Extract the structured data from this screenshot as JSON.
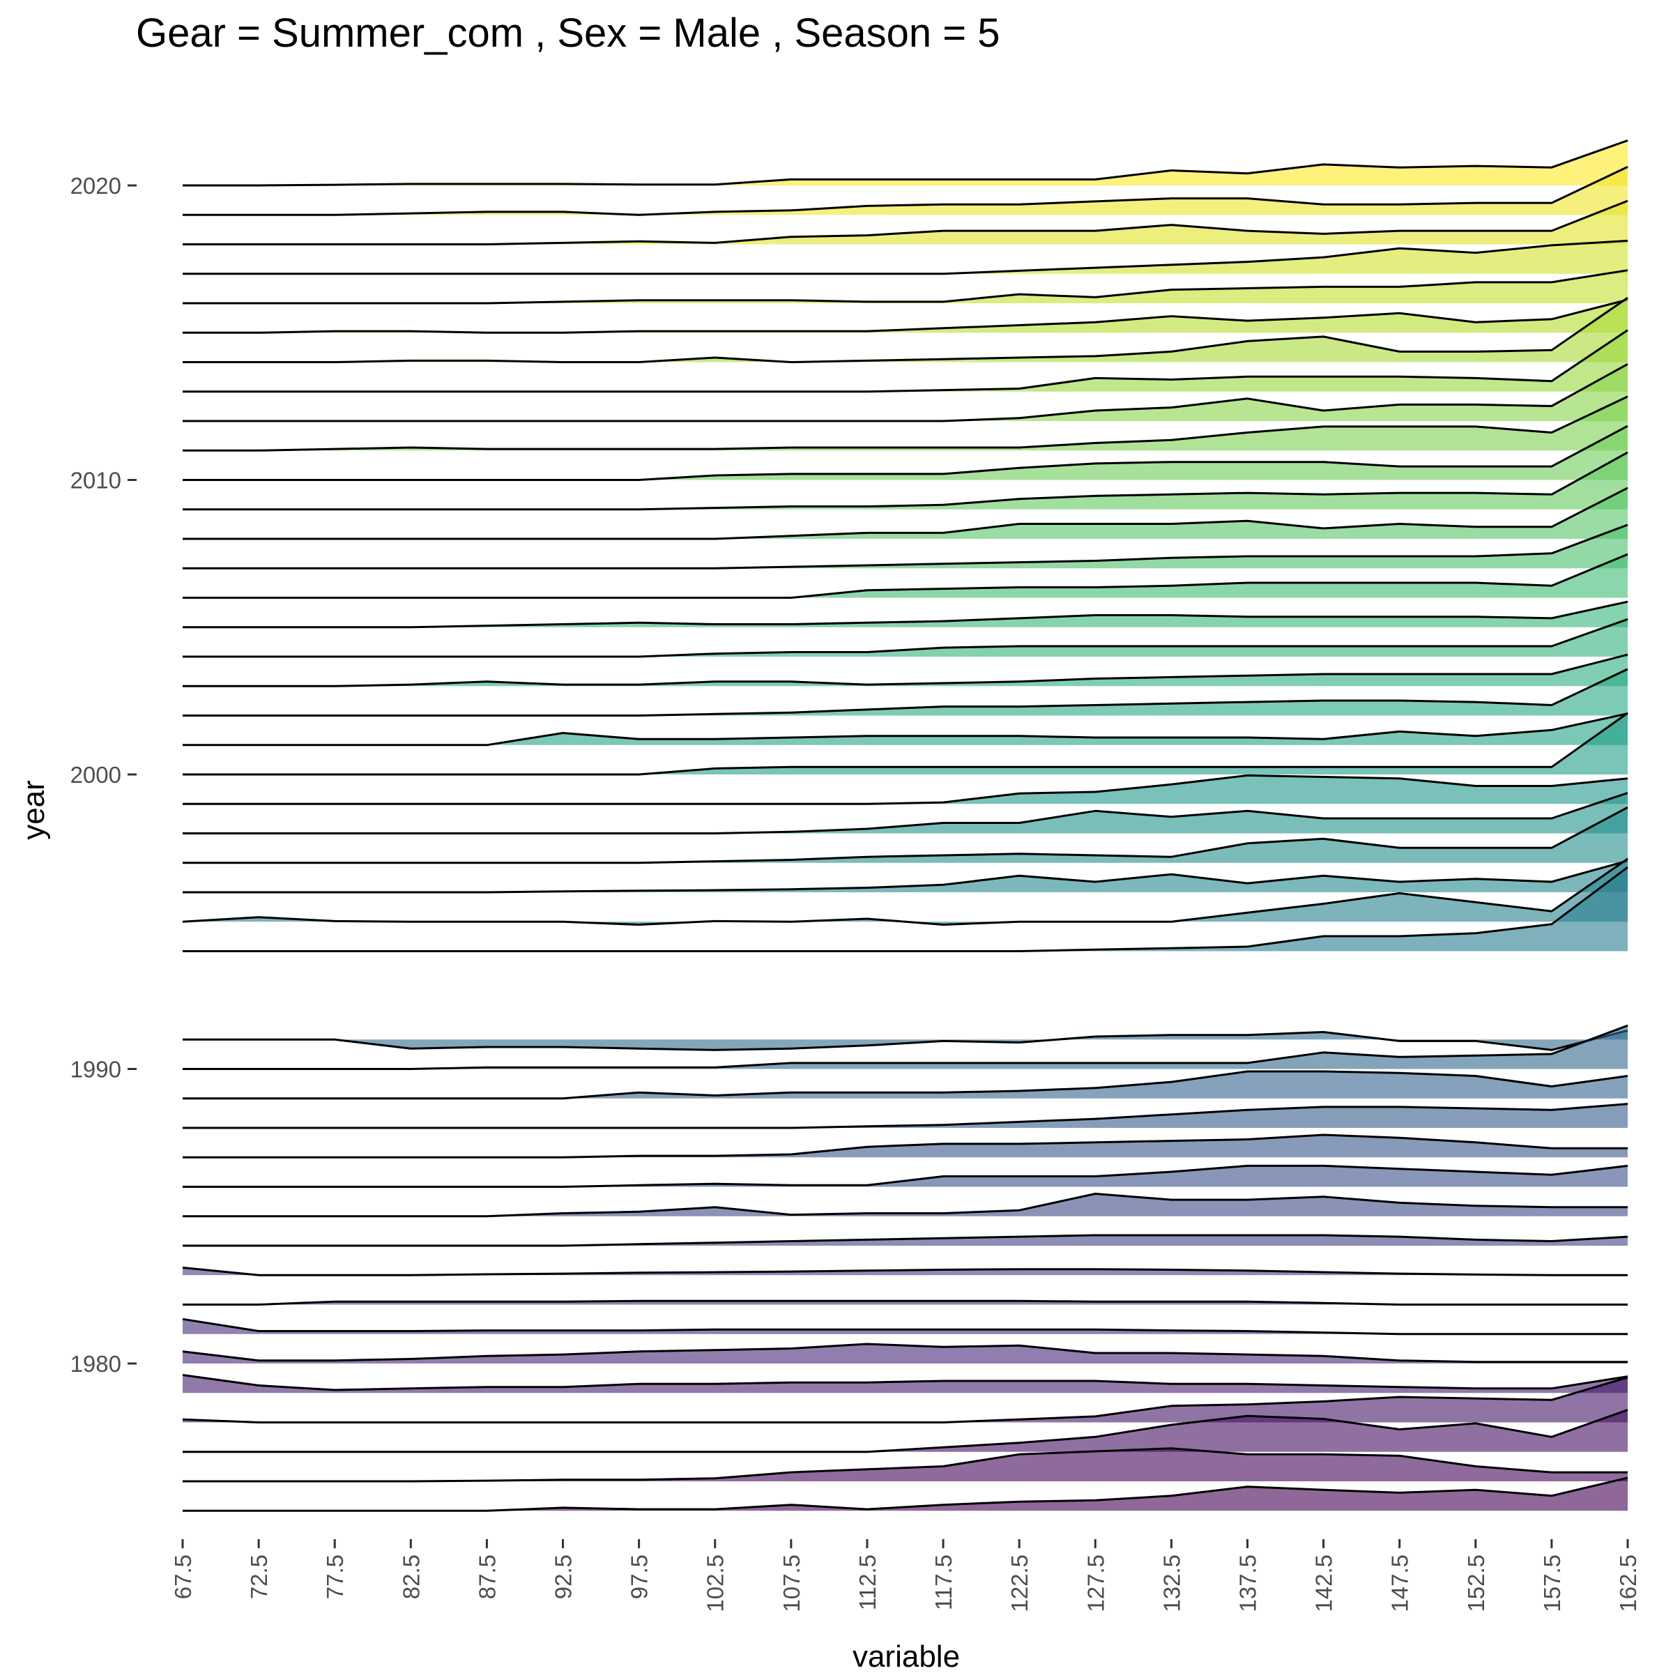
{
  "chart_data": {
    "type": "area",
    "subtype": "ridgeline",
    "title": "Gear = Summer_com , Sex = Male , Season = 5",
    "xlabel": "variable",
    "ylabel": "year",
    "x_ticks": [
      "67.5",
      "72.5",
      "77.5",
      "82.5",
      "87.5",
      "92.5",
      "97.5",
      "102.5",
      "107.5",
      "112.5",
      "117.5",
      "122.5",
      "127.5",
      "132.5",
      "137.5",
      "142.5",
      "147.5",
      "152.5",
      "157.5",
      "162.5"
    ],
    "y_ticks": [
      1980,
      1990,
      2000,
      2010,
      2020
    ],
    "ylim": [
      1974,
      2022
    ],
    "colormap": "viridis",
    "fill_opacity": 0.6,
    "line_color": "#000000",
    "ridge_scale": 1.0,
    "series": [
      {
        "year": 1975,
        "values": [
          0,
          0,
          0,
          0,
          0,
          0.1,
          0.05,
          0.05,
          0.2,
          0.05,
          0.2,
          0.3,
          0.35,
          0.5,
          0.8,
          0.7,
          0.6,
          0.7,
          0.5,
          1.1
        ]
      },
      {
        "year": 1976,
        "values": [
          0,
          0,
          0,
          0,
          0.02,
          0.05,
          0.05,
          0.1,
          0.3,
          0.4,
          0.5,
          0.9,
          1.0,
          1.1,
          0.9,
          0.9,
          0.85,
          0.5,
          0.3,
          0.3
        ]
      },
      {
        "year": 1977,
        "values": [
          0,
          0,
          0,
          0,
          0,
          0,
          0,
          0,
          0,
          0,
          0.15,
          0.3,
          0.5,
          0.9,
          1.2,
          1.1,
          0.75,
          0.95,
          0.5,
          1.4
        ]
      },
      {
        "year": 1978,
        "values": [
          0.1,
          0,
          0,
          0,
          0,
          0,
          0,
          0,
          0,
          0,
          0,
          0.1,
          0.2,
          0.55,
          0.6,
          0.7,
          0.85,
          0.8,
          0.75,
          1.5
        ]
      },
      {
        "year": 1979,
        "values": [
          0.6,
          0.25,
          0.1,
          0.15,
          0.2,
          0.2,
          0.3,
          0.3,
          0.35,
          0.35,
          0.4,
          0.4,
          0.4,
          0.3,
          0.3,
          0.25,
          0.2,
          0.15,
          0.15,
          0.55
        ]
      },
      {
        "year": 1980,
        "values": [
          0.4,
          0.1,
          0.1,
          0.15,
          0.25,
          0.3,
          0.4,
          0.45,
          0.5,
          0.65,
          0.55,
          0.6,
          0.35,
          0.35,
          0.3,
          0.25,
          0.1,
          0.05,
          0.05,
          0.05
        ]
      },
      {
        "year": 1981,
        "values": [
          0.5,
          0.1,
          0.1,
          0.1,
          0.12,
          0.12,
          0.12,
          0.15,
          0.15,
          0.15,
          0.15,
          0.15,
          0.15,
          0.12,
          0.1,
          0.05,
          0,
          0,
          0,
          0
        ]
      },
      {
        "year": 1982,
        "values": [
          0,
          0,
          0.1,
          0.1,
          0.1,
          0.1,
          0.12,
          0.12,
          0.12,
          0.12,
          0.12,
          0.12,
          0.1,
          0.1,
          0.1,
          0.05,
          0,
          0,
          0,
          0
        ]
      },
      {
        "year": 1983,
        "values": [
          0.25,
          0,
          0,
          0,
          0.03,
          0.05,
          0.08,
          0.1,
          0.12,
          0.15,
          0.18,
          0.2,
          0.2,
          0.18,
          0.15,
          0.1,
          0.05,
          0.02,
          0,
          0
        ]
      },
      {
        "year": 1984,
        "values": [
          0,
          0,
          0,
          0,
          0,
          0,
          0.05,
          0.1,
          0.15,
          0.2,
          0.25,
          0.3,
          0.35,
          0.35,
          0.35,
          0.35,
          0.3,
          0.2,
          0.15,
          0.3
        ]
      },
      {
        "year": 1985,
        "values": [
          0,
          0,
          0,
          0,
          0,
          0.1,
          0.15,
          0.3,
          0.05,
          0.1,
          0.1,
          0.2,
          0.75,
          0.55,
          0.55,
          0.65,
          0.45,
          0.35,
          0.3,
          0.3
        ]
      },
      {
        "year": 1986,
        "values": [
          0,
          0,
          0,
          0,
          0,
          0,
          0.05,
          0.1,
          0.05,
          0.05,
          0.35,
          0.35,
          0.35,
          0.5,
          0.7,
          0.7,
          0.6,
          0.5,
          0.4,
          0.7
        ]
      },
      {
        "year": 1987,
        "values": [
          0,
          0,
          0,
          0,
          0,
          0,
          0.05,
          0.05,
          0.1,
          0.35,
          0.45,
          0.45,
          0.5,
          0.55,
          0.6,
          0.75,
          0.65,
          0.5,
          0.3,
          0.3
        ]
      },
      {
        "year": 1988,
        "values": [
          0,
          0,
          0,
          0,
          0,
          0,
          0,
          0,
          0,
          0.05,
          0.1,
          0.2,
          0.3,
          0.45,
          0.6,
          0.7,
          0.7,
          0.65,
          0.6,
          0.8
        ]
      },
      {
        "year": 1989,
        "values": [
          0,
          0,
          0,
          0,
          0,
          0,
          0.2,
          0.1,
          0.2,
          0.2,
          0.2,
          0.25,
          0.35,
          0.55,
          0.9,
          0.9,
          0.85,
          0.75,
          0.4,
          0.75
        ]
      },
      {
        "year": 1990,
        "values": [
          0,
          0,
          0,
          0,
          0.05,
          0.05,
          0.05,
          0.05,
          0.2,
          0.2,
          0.2,
          0.2,
          0.2,
          0.2,
          0.2,
          0.55,
          0.4,
          0.45,
          0.5,
          1.45
        ]
      },
      {
        "year": 1991,
        "values": [
          0,
          0,
          0,
          -0.3,
          -0.25,
          -0.25,
          -0.3,
          -0.35,
          -0.3,
          -0.2,
          -0.05,
          -0.1,
          0.1,
          0.15,
          0.15,
          0.25,
          -0.05,
          -0.05,
          -0.35,
          0.3
        ]
      },
      {
        "year": 1994,
        "values": [
          0,
          0,
          0,
          0,
          0,
          0,
          0,
          0,
          0,
          0,
          0,
          0,
          0.05,
          0.1,
          0.15,
          0.5,
          0.5,
          0.6,
          0.9,
          2.8
        ]
      },
      {
        "year": 1995,
        "values": [
          0,
          0.15,
          0.02,
          0,
          0,
          0,
          -0.1,
          0.02,
          0,
          0.1,
          -0.1,
          0,
          0,
          0,
          0.3,
          0.6,
          0.95,
          0.65,
          0.35,
          2.1
        ]
      },
      {
        "year": 1996,
        "values": [
          0,
          0,
          0,
          0,
          0,
          0.03,
          0.05,
          0.07,
          0.1,
          0.15,
          0.25,
          0.55,
          0.35,
          0.6,
          0.3,
          0.55,
          0.35,
          0.45,
          0.35,
          1.05
        ]
      },
      {
        "year": 1997,
        "values": [
          0,
          0,
          0,
          0,
          0,
          0,
          0,
          0.05,
          0.1,
          0.2,
          0.25,
          0.3,
          0.25,
          0.2,
          0.65,
          0.8,
          0.5,
          0.5,
          0.5,
          1.85
        ]
      },
      {
        "year": 1998,
        "values": [
          0,
          0,
          0,
          0,
          0,
          0,
          0,
          0,
          0.05,
          0.15,
          0.35,
          0.35,
          0.75,
          0.55,
          0.75,
          0.5,
          0.5,
          0.5,
          0.5,
          1.35
        ]
      },
      {
        "year": 1999,
        "values": [
          0,
          0,
          0,
          0,
          0,
          0,
          0,
          0,
          0,
          0,
          0.05,
          0.35,
          0.4,
          0.65,
          0.95,
          0.9,
          0.85,
          0.6,
          0.6,
          0.85
        ]
      },
      {
        "year": 2000,
        "values": [
          0,
          0,
          0,
          0,
          0,
          0,
          0,
          0.2,
          0.25,
          0.25,
          0.25,
          0.25,
          0.25,
          0.25,
          0.25,
          0.25,
          0.25,
          0.25,
          0.25,
          2.05
        ]
      },
      {
        "year": 2001,
        "values": [
          0,
          0,
          0,
          0,
          0,
          0.4,
          0.2,
          0.2,
          0.25,
          0.3,
          0.3,
          0.3,
          0.25,
          0.25,
          0.25,
          0.2,
          0.45,
          0.3,
          0.5,
          1.05
        ]
      },
      {
        "year": 2002,
        "values": [
          0,
          0,
          0,
          0,
          0,
          0,
          0,
          0.05,
          0.1,
          0.2,
          0.3,
          0.3,
          0.35,
          0.4,
          0.45,
          0.5,
          0.5,
          0.45,
          0.35,
          1.55
        ]
      },
      {
        "year": 2003,
        "values": [
          0,
          0,
          0,
          0.05,
          0.15,
          0.05,
          0.05,
          0.15,
          0.15,
          0.05,
          0.1,
          0.15,
          0.25,
          0.3,
          0.35,
          0.4,
          0.4,
          0.4,
          0.4,
          1.05
        ]
      },
      {
        "year": 2004,
        "values": [
          0,
          0,
          0,
          0,
          0,
          0,
          0,
          0.1,
          0.15,
          0.15,
          0.3,
          0.35,
          0.35,
          0.35,
          0.35,
          0.35,
          0.35,
          0.35,
          0.35,
          1.25
        ]
      },
      {
        "year": 2005,
        "values": [
          0,
          0,
          0,
          0,
          0.05,
          0.1,
          0.15,
          0.1,
          0.1,
          0.15,
          0.2,
          0.3,
          0.4,
          0.4,
          0.35,
          0.35,
          0.35,
          0.35,
          0.3,
          0.85
        ]
      },
      {
        "year": 2006,
        "values": [
          0,
          0,
          0,
          0,
          0,
          0,
          0,
          0,
          0,
          0.25,
          0.3,
          0.35,
          0.35,
          0.4,
          0.5,
          0.5,
          0.5,
          0.5,
          0.4,
          1.45
        ]
      },
      {
        "year": 2007,
        "values": [
          0,
          0,
          0,
          0,
          0,
          0,
          0,
          0,
          0.05,
          0.1,
          0.15,
          0.2,
          0.25,
          0.35,
          0.4,
          0.4,
          0.4,
          0.4,
          0.5,
          1.45
        ]
      },
      {
        "year": 2008,
        "values": [
          0,
          0,
          0,
          0,
          0,
          0,
          0,
          0,
          0.1,
          0.2,
          0.2,
          0.5,
          0.5,
          0.5,
          0.6,
          0.35,
          0.5,
          0.4,
          0.4,
          1.7
        ]
      },
      {
        "year": 2009,
        "values": [
          0,
          0,
          0,
          0,
          0,
          0,
          0,
          0.05,
          0.1,
          0.1,
          0.15,
          0.35,
          0.45,
          0.5,
          0.55,
          0.5,
          0.55,
          0.55,
          0.5,
          1.9
        ]
      },
      {
        "year": 2010,
        "values": [
          0,
          0,
          0,
          0,
          0,
          0,
          0,
          0.15,
          0.2,
          0.2,
          0.2,
          0.4,
          0.55,
          0.6,
          0.6,
          0.6,
          0.45,
          0.45,
          0.45,
          1.8
        ]
      },
      {
        "year": 2011,
        "values": [
          0,
          0,
          0.05,
          0.1,
          0.05,
          0.05,
          0.05,
          0.05,
          0.1,
          0.1,
          0.1,
          0.1,
          0.25,
          0.35,
          0.6,
          0.8,
          0.8,
          0.8,
          0.6,
          1.8
        ]
      },
      {
        "year": 2012,
        "values": [
          0,
          0,
          0,
          0,
          0,
          0,
          0,
          0,
          0,
          0,
          0,
          0.1,
          0.35,
          0.45,
          0.75,
          0.35,
          0.55,
          0.55,
          0.5,
          1.9
        ]
      },
      {
        "year": 2013,
        "values": [
          0,
          0,
          0,
          0,
          0,
          0,
          0,
          0,
          0,
          0,
          0.05,
          0.1,
          0.45,
          0.4,
          0.5,
          0.5,
          0.5,
          0.45,
          0.35,
          2.05
        ]
      },
      {
        "year": 2014,
        "values": [
          0,
          0,
          0,
          0.05,
          0.05,
          0,
          0,
          0.15,
          0,
          0.05,
          0.1,
          0.15,
          0.2,
          0.35,
          0.7,
          0.85,
          0.35,
          0.35,
          0.4,
          2.15
        ]
      },
      {
        "year": 2015,
        "values": [
          0,
          0,
          0.05,
          0.05,
          0,
          0,
          0.05,
          0.05,
          0.05,
          0.05,
          0.15,
          0.25,
          0.35,
          0.55,
          0.4,
          0.5,
          0.65,
          0.35,
          0.45,
          1.1
        ]
      },
      {
        "year": 2016,
        "values": [
          0,
          0,
          0,
          0,
          0,
          0.05,
          0.1,
          0.1,
          0.1,
          0.05,
          0.05,
          0.3,
          0.2,
          0.45,
          0.5,
          0.55,
          0.55,
          0.7,
          0.7,
          1.1
        ]
      },
      {
        "year": 2017,
        "values": [
          0,
          0,
          0,
          0,
          0,
          0,
          0,
          0,
          0,
          0,
          0,
          0.1,
          0.2,
          0.3,
          0.4,
          0.55,
          0.85,
          0.7,
          0.95,
          1.1
        ]
      },
      {
        "year": 2018,
        "values": [
          0,
          0,
          0,
          0,
          0,
          0.05,
          0.1,
          0.05,
          0.25,
          0.3,
          0.45,
          0.45,
          0.45,
          0.65,
          0.45,
          0.35,
          0.45,
          0.45,
          0.45,
          1.45
        ]
      },
      {
        "year": 2019,
        "values": [
          0,
          0,
          0,
          0.05,
          0.1,
          0.1,
          0,
          0.1,
          0.15,
          0.3,
          0.35,
          0.35,
          0.45,
          0.55,
          0.55,
          0.35,
          0.35,
          0.4,
          0.4,
          1.6
        ]
      },
      {
        "year": 2020,
        "values": [
          0,
          0,
          0.02,
          0.05,
          0.05,
          0.05,
          0.03,
          0.03,
          0.2,
          0.2,
          0.2,
          0.2,
          0.2,
          0.5,
          0.4,
          0.7,
          0.6,
          0.65,
          0.6,
          1.5
        ]
      }
    ]
  }
}
